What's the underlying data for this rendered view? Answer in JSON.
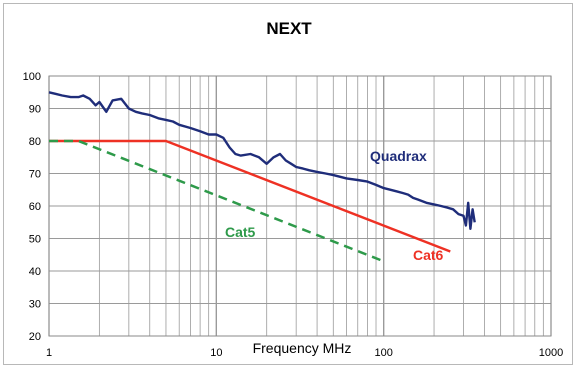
{
  "chart_data": {
    "type": "line",
    "title": "NEXT",
    "xlabel": "Frequency MHz",
    "ylabel": "",
    "xscale": "log",
    "xlim": [
      1,
      1000
    ],
    "ylim": [
      20,
      100
    ],
    "grid": true,
    "xticks": [
      "1",
      "10",
      "100",
      "1000"
    ],
    "yticks": [
      "20",
      "30",
      "40",
      "50",
      "60",
      "70",
      "80",
      "90",
      "100"
    ],
    "series": [
      {
        "name": "Quadrax",
        "color": "#1f2d7a",
        "style": "solid",
        "x": [
          1,
          1.1,
          1.2,
          1.35,
          1.5,
          1.6,
          1.75,
          1.9,
          2,
          2.2,
          2.4,
          2.7,
          3,
          3.3,
          3.6,
          4,
          4.5,
          5,
          5.5,
          6,
          7,
          8,
          9,
          10,
          11,
          12,
          13,
          14,
          16,
          18,
          20,
          22,
          24,
          26,
          28,
          30,
          33,
          36,
          40,
          45,
          50,
          55,
          60,
          70,
          80,
          90,
          100,
          110,
          120,
          130,
          140,
          150,
          160,
          180,
          200,
          220,
          240,
          260,
          280,
          300,
          310,
          320,
          330,
          340,
          350
        ],
        "values": [
          95,
          94.5,
          94,
          93.5,
          93.5,
          94,
          93,
          91,
          92,
          89,
          92.5,
          93,
          90,
          89,
          88.5,
          88,
          87,
          86.5,
          86,
          85,
          84,
          83,
          82,
          82,
          81,
          78,
          76,
          75.5,
          76,
          75,
          73,
          75,
          76,
          74,
          73,
          72,
          71.5,
          71,
          70.5,
          70,
          69.5,
          69,
          68.5,
          68,
          67.5,
          66.5,
          65.5,
          65,
          64.5,
          64,
          63.5,
          62.5,
          62,
          61,
          60.5,
          60,
          59.5,
          59,
          57.5,
          57,
          54,
          61,
          53,
          59,
          55
        ]
      },
      {
        "name": "Cat6",
        "color": "#ee3124",
        "style": "solid",
        "x": [
          1,
          5,
          250
        ],
        "values": [
          80,
          80,
          46
        ]
      },
      {
        "name": "Cat5",
        "color": "#2e9a4a",
        "style": "dashed",
        "x": [
          1,
          1.5,
          100
        ],
        "values": [
          80,
          80,
          43
        ]
      }
    ]
  }
}
